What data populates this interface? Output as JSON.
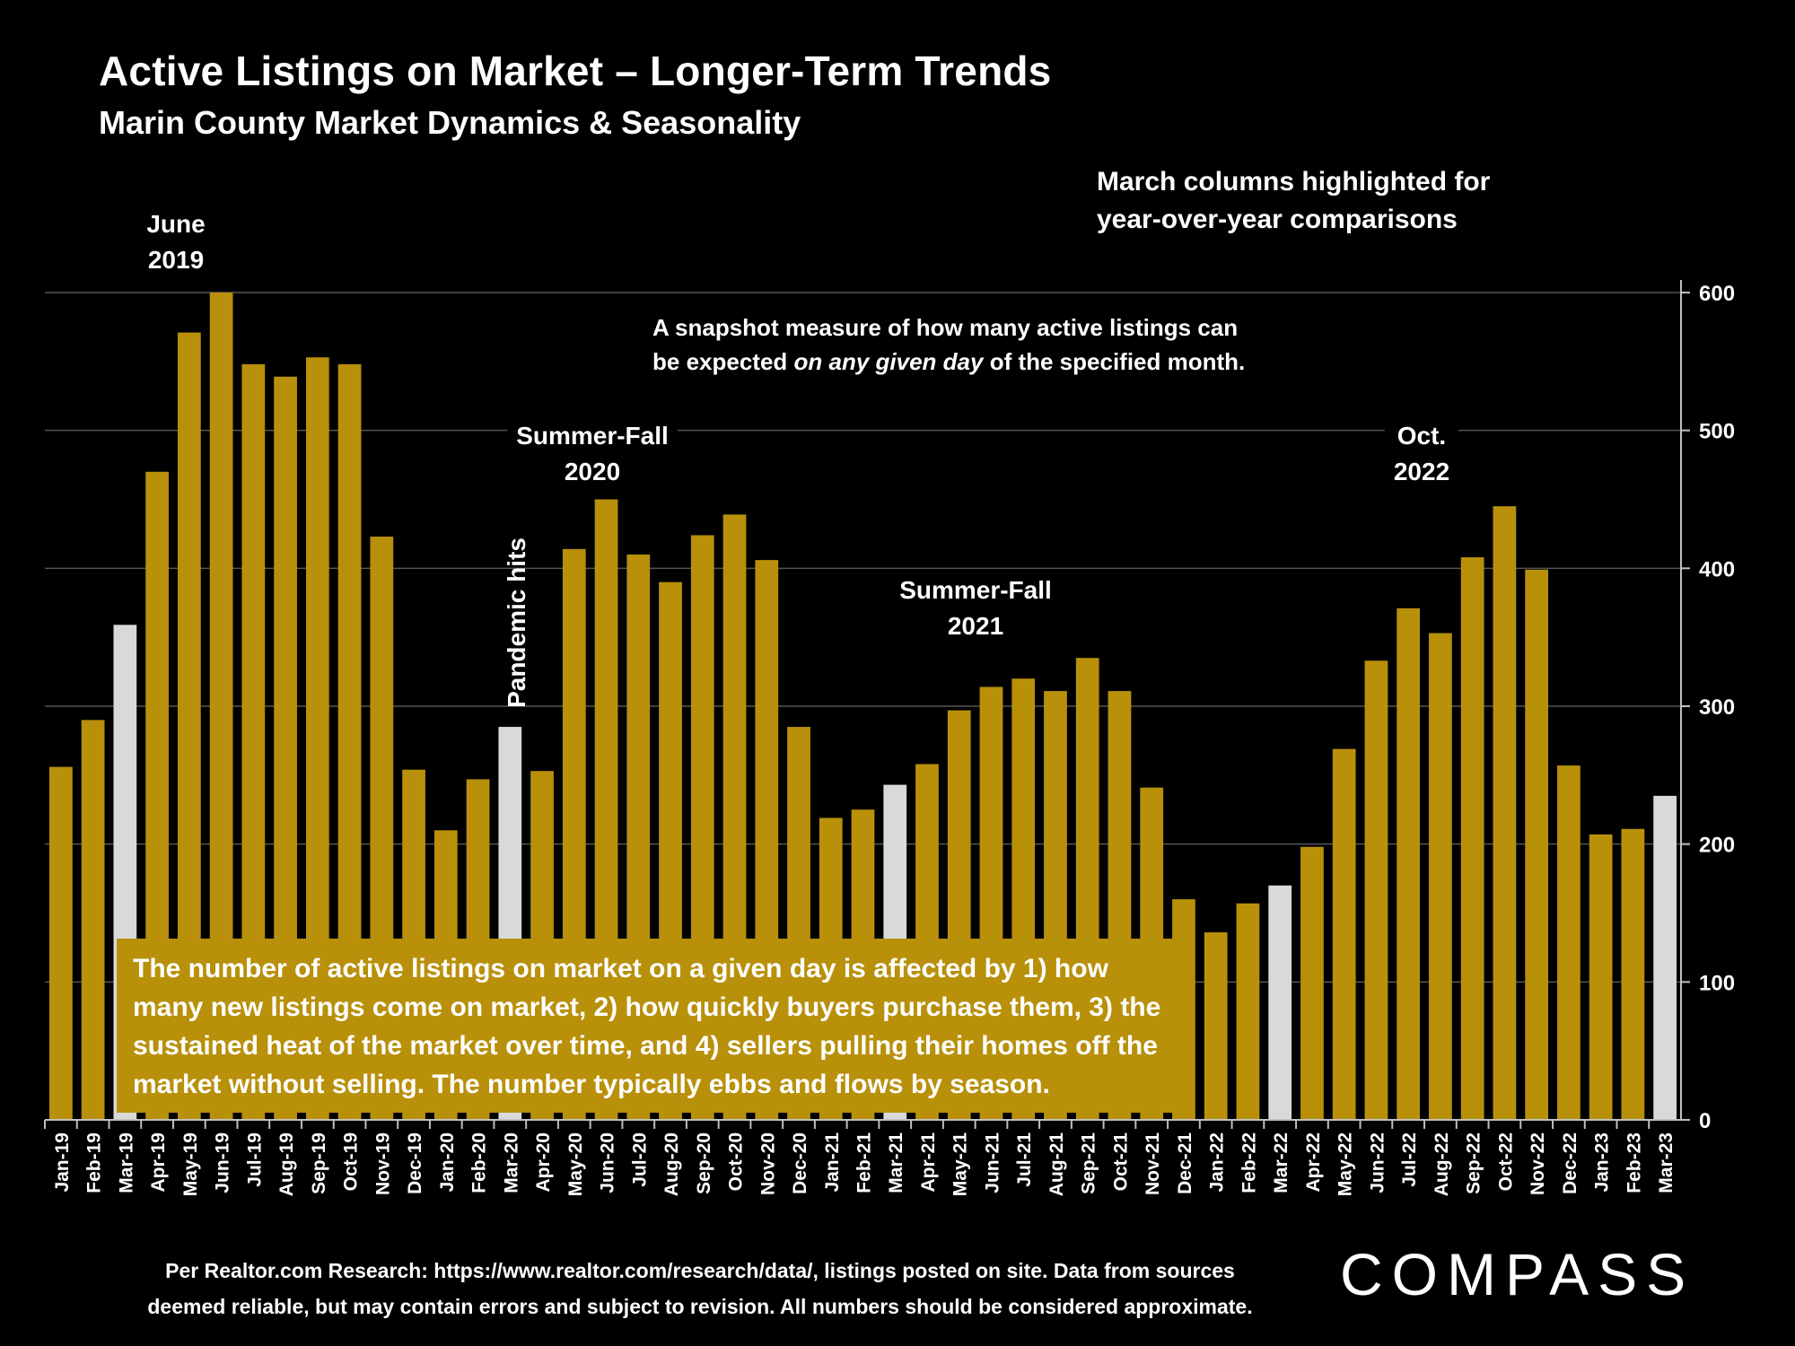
{
  "title": "Active Listings on Market – Longer-Term Trends",
  "subtitle": "Marin County Market Dynamics & Seasonality",
  "annotations": {
    "march_note_line1": "March columns highlighted for",
    "march_note_line2": "year-over-year comparisons",
    "snapshot_line1": "A snapshot measure of how many active listings can",
    "snapshot_line2_a": "be expected ",
    "snapshot_line2_em": "on any given day",
    "snapshot_line2_b": " of the specified month.",
    "june_line1": "June",
    "june_line2": "2019",
    "sf2020_line1": "Summer-Fall",
    "sf2020_line2": "2020",
    "sf2021_line1": "Summer-Fall",
    "sf2021_line2": "2021",
    "oct_line1": "Oct.",
    "oct_line2": "2022",
    "pandemic": "Pandemic hits"
  },
  "factbox": "The number of active listings on market on a given day is affected by 1) how many new listings come on market, 2) how quickly buyers purchase them, 3) the sustained heat of the market over time, and 4) sellers pulling their homes off the market without selling. The number typically ebbs and flows by season.",
  "source_line1": "Per Realtor.com Research:  https://www.realtor.com/research/data/, listings posted on site. Data from sources",
  "source_line2": "deemed reliable, but may contain errors and subject to revision. All numbers should be considered approximate.",
  "logo": "COMPASS",
  "chart_data": {
    "type": "bar",
    "categories": [
      "Jan-19",
      "Feb-19",
      "Mar-19",
      "Apr-19",
      "May-19",
      "Jun-19",
      "Jul-19",
      "Aug-19",
      "Sep-19",
      "Oct-19",
      "Nov-19",
      "Dec-19",
      "Jan-20",
      "Feb-20",
      "Mar-20",
      "Apr-20",
      "May-20",
      "Jun-20",
      "Jul-20",
      "Aug-20",
      "Sep-20",
      "Oct-20",
      "Nov-20",
      "Dec-20",
      "Jan-21",
      "Feb-21",
      "Mar-21",
      "Apr-21",
      "May-21",
      "Jun-21",
      "Jul-21",
      "Aug-21",
      "Sep-21",
      "Oct-21",
      "Nov-21",
      "Dec-21",
      "Jan-22",
      "Feb-22",
      "Mar-22",
      "Apr-22",
      "May-22",
      "Jun-22",
      "Jul-22",
      "Aug-22",
      "Sep-22",
      "Oct-22",
      "Nov-22",
      "Dec-22",
      "Jan-23",
      "Feb-23",
      "Mar-23"
    ],
    "values": [
      256,
      290,
      359,
      470,
      571,
      600,
      548,
      539,
      553,
      548,
      423,
      254,
      210,
      247,
      285,
      253,
      414,
      450,
      410,
      390,
      424,
      439,
      406,
      285,
      219,
      225,
      243,
      258,
      297,
      314,
      320,
      311,
      335,
      311,
      241,
      160,
      136,
      157,
      170,
      198,
      269,
      333,
      371,
      353,
      408,
      445,
      399,
      257,
      207,
      211,
      235
    ],
    "highlight_months": [
      "Mar-19",
      "Mar-20",
      "Mar-21",
      "Mar-22",
      "Mar-23"
    ],
    "ylim": [
      0,
      600
    ],
    "yticks": [
      0,
      100,
      200,
      300,
      400,
      500,
      600
    ],
    "y_axis_side": "right",
    "grid": true,
    "xlabel": "",
    "ylabel": "",
    "colors": {
      "bar": "#b8900a",
      "highlight": "#d9d9d9",
      "grid": "#555555",
      "axis": "#bfbfbf"
    }
  }
}
